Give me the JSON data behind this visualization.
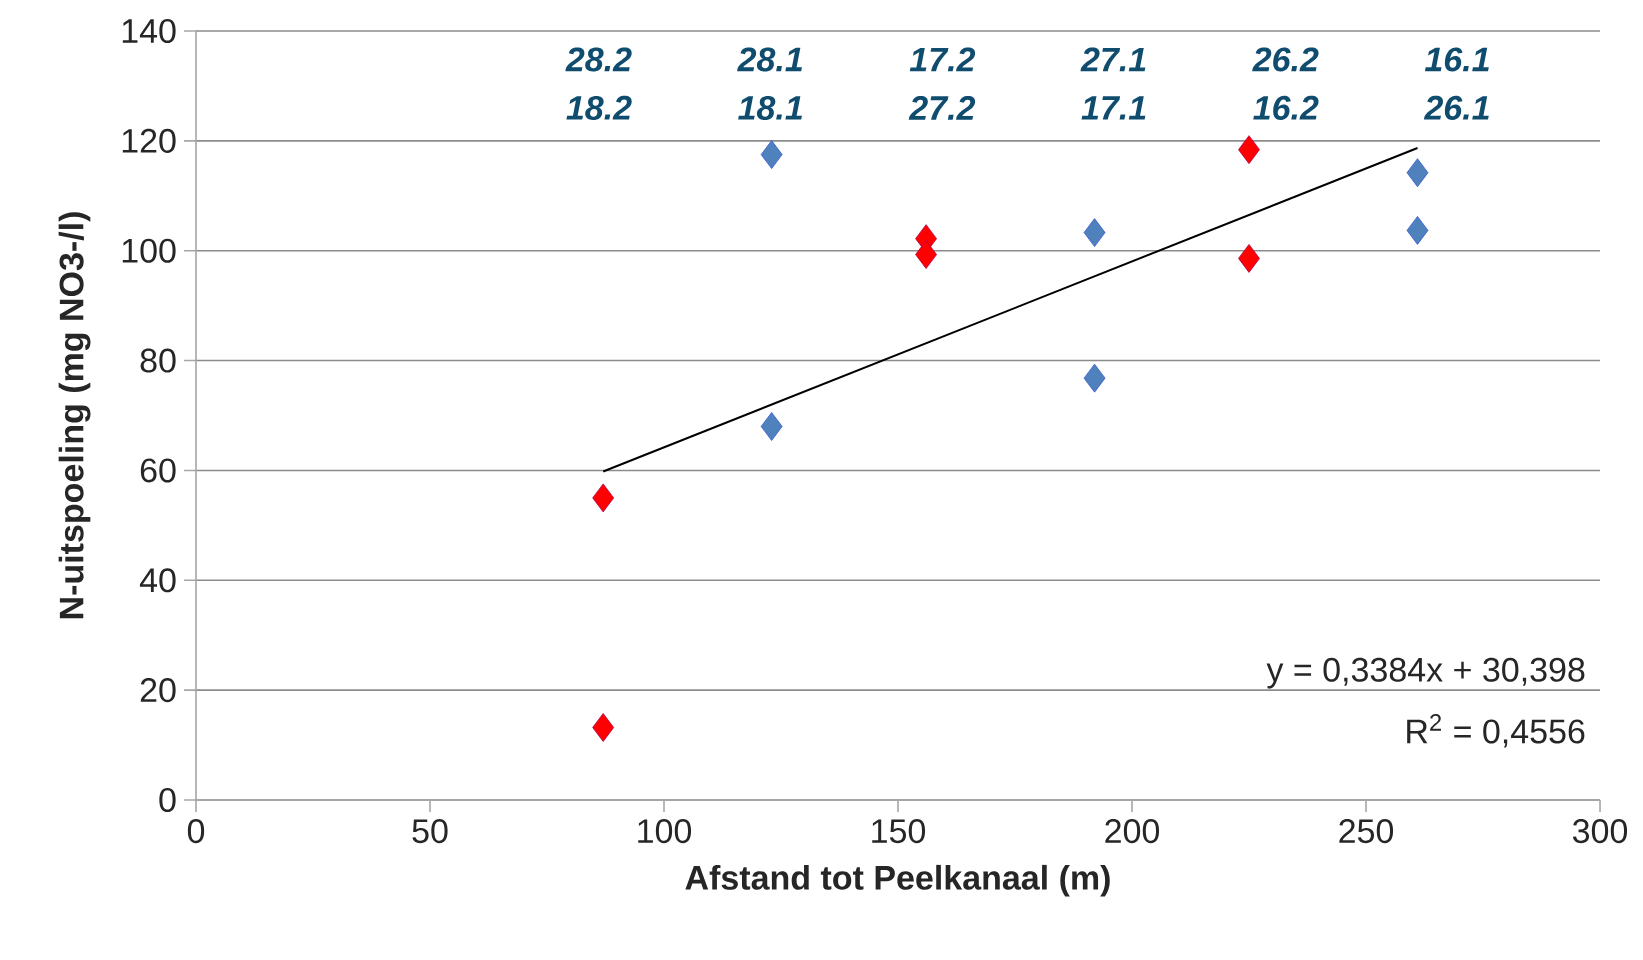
{
  "chart_data": {
    "type": "scatter",
    "xlabel": "Afstand tot Peelkanaal (m)",
    "ylabel": "N-uitspoeling (mg NO3-/l)",
    "xlim": [
      0,
      300
    ],
    "xticks": [
      0,
      50,
      100,
      150,
      200,
      250,
      300
    ],
    "ylim": [
      0,
      140
    ],
    "yticks": [
      0,
      20,
      40,
      60,
      80,
      100,
      120,
      140
    ],
    "grid": "y",
    "marker": "diamond",
    "series": [
      {
        "color": "#4f81bd",
        "x": [
          123,
          123,
          192,
          192,
          261,
          261
        ],
        "values": [
          117.5,
          68,
          103.3,
          76.8,
          114.2,
          103.7
        ]
      },
      {
        "color": "#ff0000",
        "x": [
          87,
          87,
          156,
          156,
          225,
          225
        ],
        "values": [
          55,
          13.2,
          102.2,
          99.3,
          118.4,
          98.6
        ]
      },
      {
        "type": "line",
        "marker": "none",
        "color": "#000000",
        "x": [
          87,
          261
        ],
        "values": [
          59.8,
          118.7
        ]
      }
    ],
    "annotations": [
      "28.2",
      "18.2",
      "28.1",
      "18.1",
      "17.2",
      "27.2",
      "27.1",
      "17.1",
      "26.2",
      "16.2",
      "16.1",
      "26.1",
      "y = 0,3384x + 30,398",
      "R$^{2}$ = 0,4556"
    ]
  }
}
